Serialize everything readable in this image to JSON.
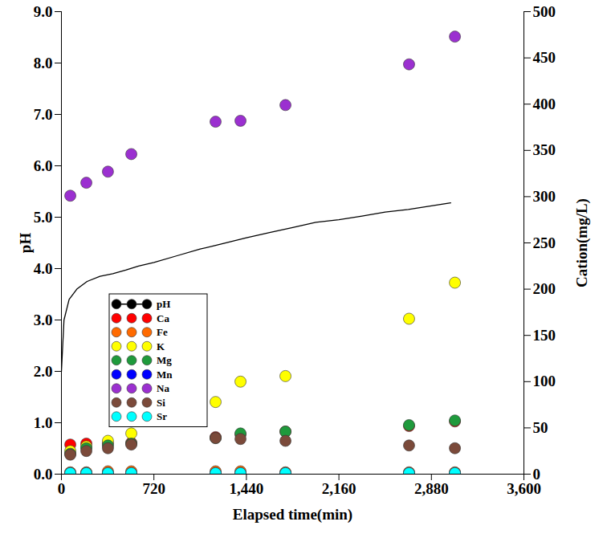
{
  "chart_data": {
    "type": "scatter",
    "x_label": "Elapsed time(min)",
    "y_label": "pH",
    "y2_label": "Cation(mg/L)",
    "xlim": [
      0,
      3600
    ],
    "xticks": [
      0,
      720,
      1440,
      2160,
      2880,
      3600
    ],
    "ylim": [
      0,
      9
    ],
    "yticks": [
      0,
      1,
      2,
      3,
      4,
      5,
      6,
      7,
      8,
      9
    ],
    "y2lim": [
      0,
      500
    ],
    "y2ticks": [
      0,
      50,
      100,
      150,
      200,
      250,
      300,
      350,
      400,
      450,
      500
    ],
    "legend": "left",
    "series": [
      {
        "name": "pH",
        "type": "line",
        "color": "#000000",
        "marker": "circle",
        "x": [
          0,
          20,
          60,
          120,
          200,
          300,
          400,
          500,
          600,
          720,
          900,
          1080,
          1200,
          1440,
          1620,
          1800,
          1980,
          2160,
          2340,
          2520,
          2700,
          2880,
          3030
        ],
        "values": [
          2.0,
          3.0,
          3.4,
          3.6,
          3.75,
          3.85,
          3.9,
          3.97,
          4.05,
          4.12,
          4.25,
          4.38,
          4.45,
          4.6,
          4.7,
          4.8,
          4.9,
          4.95,
          5.02,
          5.1,
          5.15,
          5.22,
          5.28
        ]
      },
      {
        "name": "Ca",
        "axis": "y2",
        "color": "#ff0000",
        "marker": "circle",
        "x": [
          69,
          194,
          362,
          544,
          1200,
          1394,
          1744,
          2706,
          3063
        ],
        "values": [
          32,
          33,
          33,
          34,
          40,
          43,
          46,
          52,
          57
        ]
      },
      {
        "name": "Fe",
        "axis": "y2",
        "color": "#ff6a00",
        "marker": "circle",
        "x": [
          69,
          194,
          362,
          544,
          1200,
          1394,
          1744,
          2706,
          3063
        ],
        "values": [
          2,
          2,
          3,
          3,
          3,
          3,
          2,
          2,
          2
        ]
      },
      {
        "name": "K",
        "axis": "y2",
        "color": "#ffff00",
        "marker": "circle",
        "x": [
          69,
          194,
          362,
          544,
          1200,
          1394,
          1744,
          2706,
          3063
        ],
        "values": [
          25,
          30,
          36,
          44,
          78,
          100,
          106,
          168,
          207
        ]
      },
      {
        "name": "Mg",
        "axis": "y2",
        "color": "#1f9a3c",
        "marker": "circle",
        "x": [
          69,
          194,
          362,
          544,
          1200,
          1394,
          1744,
          2706,
          3063
        ],
        "values": [
          22,
          28,
          31,
          33,
          39,
          44,
          46,
          53,
          58
        ]
      },
      {
        "name": "Mn",
        "axis": "y2",
        "color": "#0000ff",
        "marker": "circle",
        "x": [
          69,
          194,
          362,
          544,
          1200,
          1394,
          1744,
          2706,
          3063
        ],
        "values": [
          1,
          1,
          1,
          1,
          1,
          1,
          1,
          1,
          1
        ]
      },
      {
        "name": "Na",
        "axis": "y2",
        "color": "#9b30d0",
        "marker": "circle",
        "x": [
          69,
          194,
          362,
          544,
          1200,
          1394,
          1744,
          2706,
          3063
        ],
        "values": [
          301,
          315,
          327,
          346,
          381,
          382,
          399,
          443,
          473
        ]
      },
      {
        "name": "Si",
        "axis": "y2",
        "color": "#7b4a3a",
        "marker": "circle",
        "x": [
          69,
          194,
          362,
          544,
          1200,
          1394,
          1744,
          2706,
          3063
        ],
        "values": [
          21,
          25,
          28,
          32,
          39,
          38,
          36,
          31,
          28
        ]
      },
      {
        "name": "Sr",
        "axis": "y2",
        "color": "#00ffff",
        "marker": "circle",
        "x": [
          69,
          194,
          362,
          544,
          1200,
          1394,
          1744,
          2706,
          3063
        ],
        "values": [
          1,
          1,
          1,
          1,
          1,
          1,
          1,
          1,
          1
        ]
      }
    ]
  }
}
